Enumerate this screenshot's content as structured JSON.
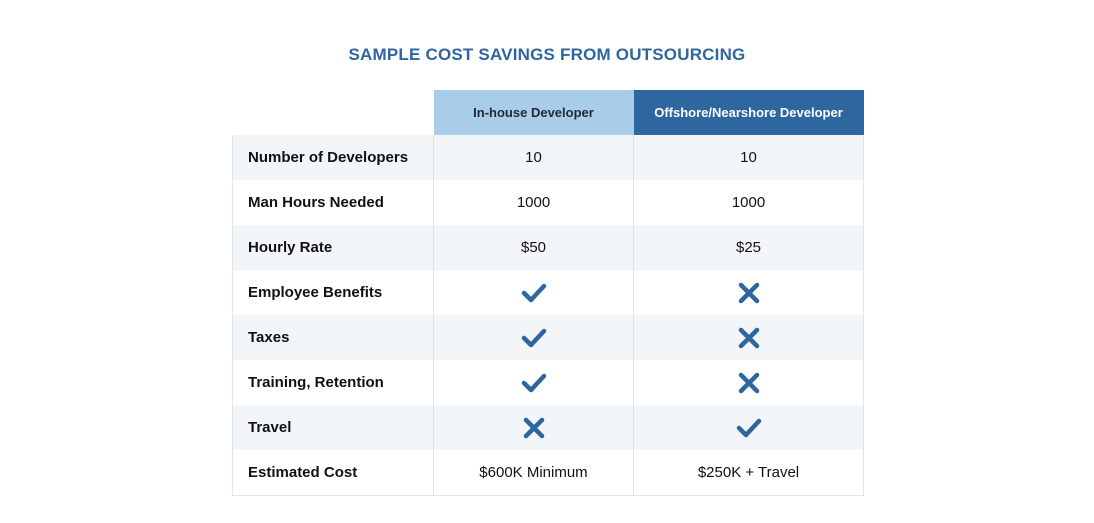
{
  "title": "SAMPLE COST SAVINGS FROM OUTSOURCING",
  "colors": {
    "title": "#2e66a0",
    "inhouse_header_bg": "#a9cde9",
    "offshore_header_bg": "#2e66a0",
    "mark": "#2e66a0",
    "row_alt": "#f3f6f9"
  },
  "chart_data": {
    "type": "table",
    "columns": [
      "In-house Developer",
      "Offshore/Nearshore Developer"
    ],
    "rows": [
      {
        "label": "Number of Developers",
        "inhouse": "10",
        "offshore": "10"
      },
      {
        "label": "Man Hours Needed",
        "inhouse": "1000",
        "offshore": "1000"
      },
      {
        "label": "Hourly Rate",
        "inhouse": "$50",
        "offshore": "$25"
      },
      {
        "label": "Employee Benefits",
        "inhouse": "check",
        "offshore": "cross"
      },
      {
        "label": "Taxes",
        "inhouse": "check",
        "offshore": "cross"
      },
      {
        "label": "Training, Retention",
        "inhouse": "check",
        "offshore": "cross"
      },
      {
        "label": "Travel",
        "inhouse": "cross",
        "offshore": "check"
      },
      {
        "label": "Estimated Cost",
        "inhouse": "$600K Minimum",
        "offshore": "$250K + Travel"
      }
    ]
  }
}
